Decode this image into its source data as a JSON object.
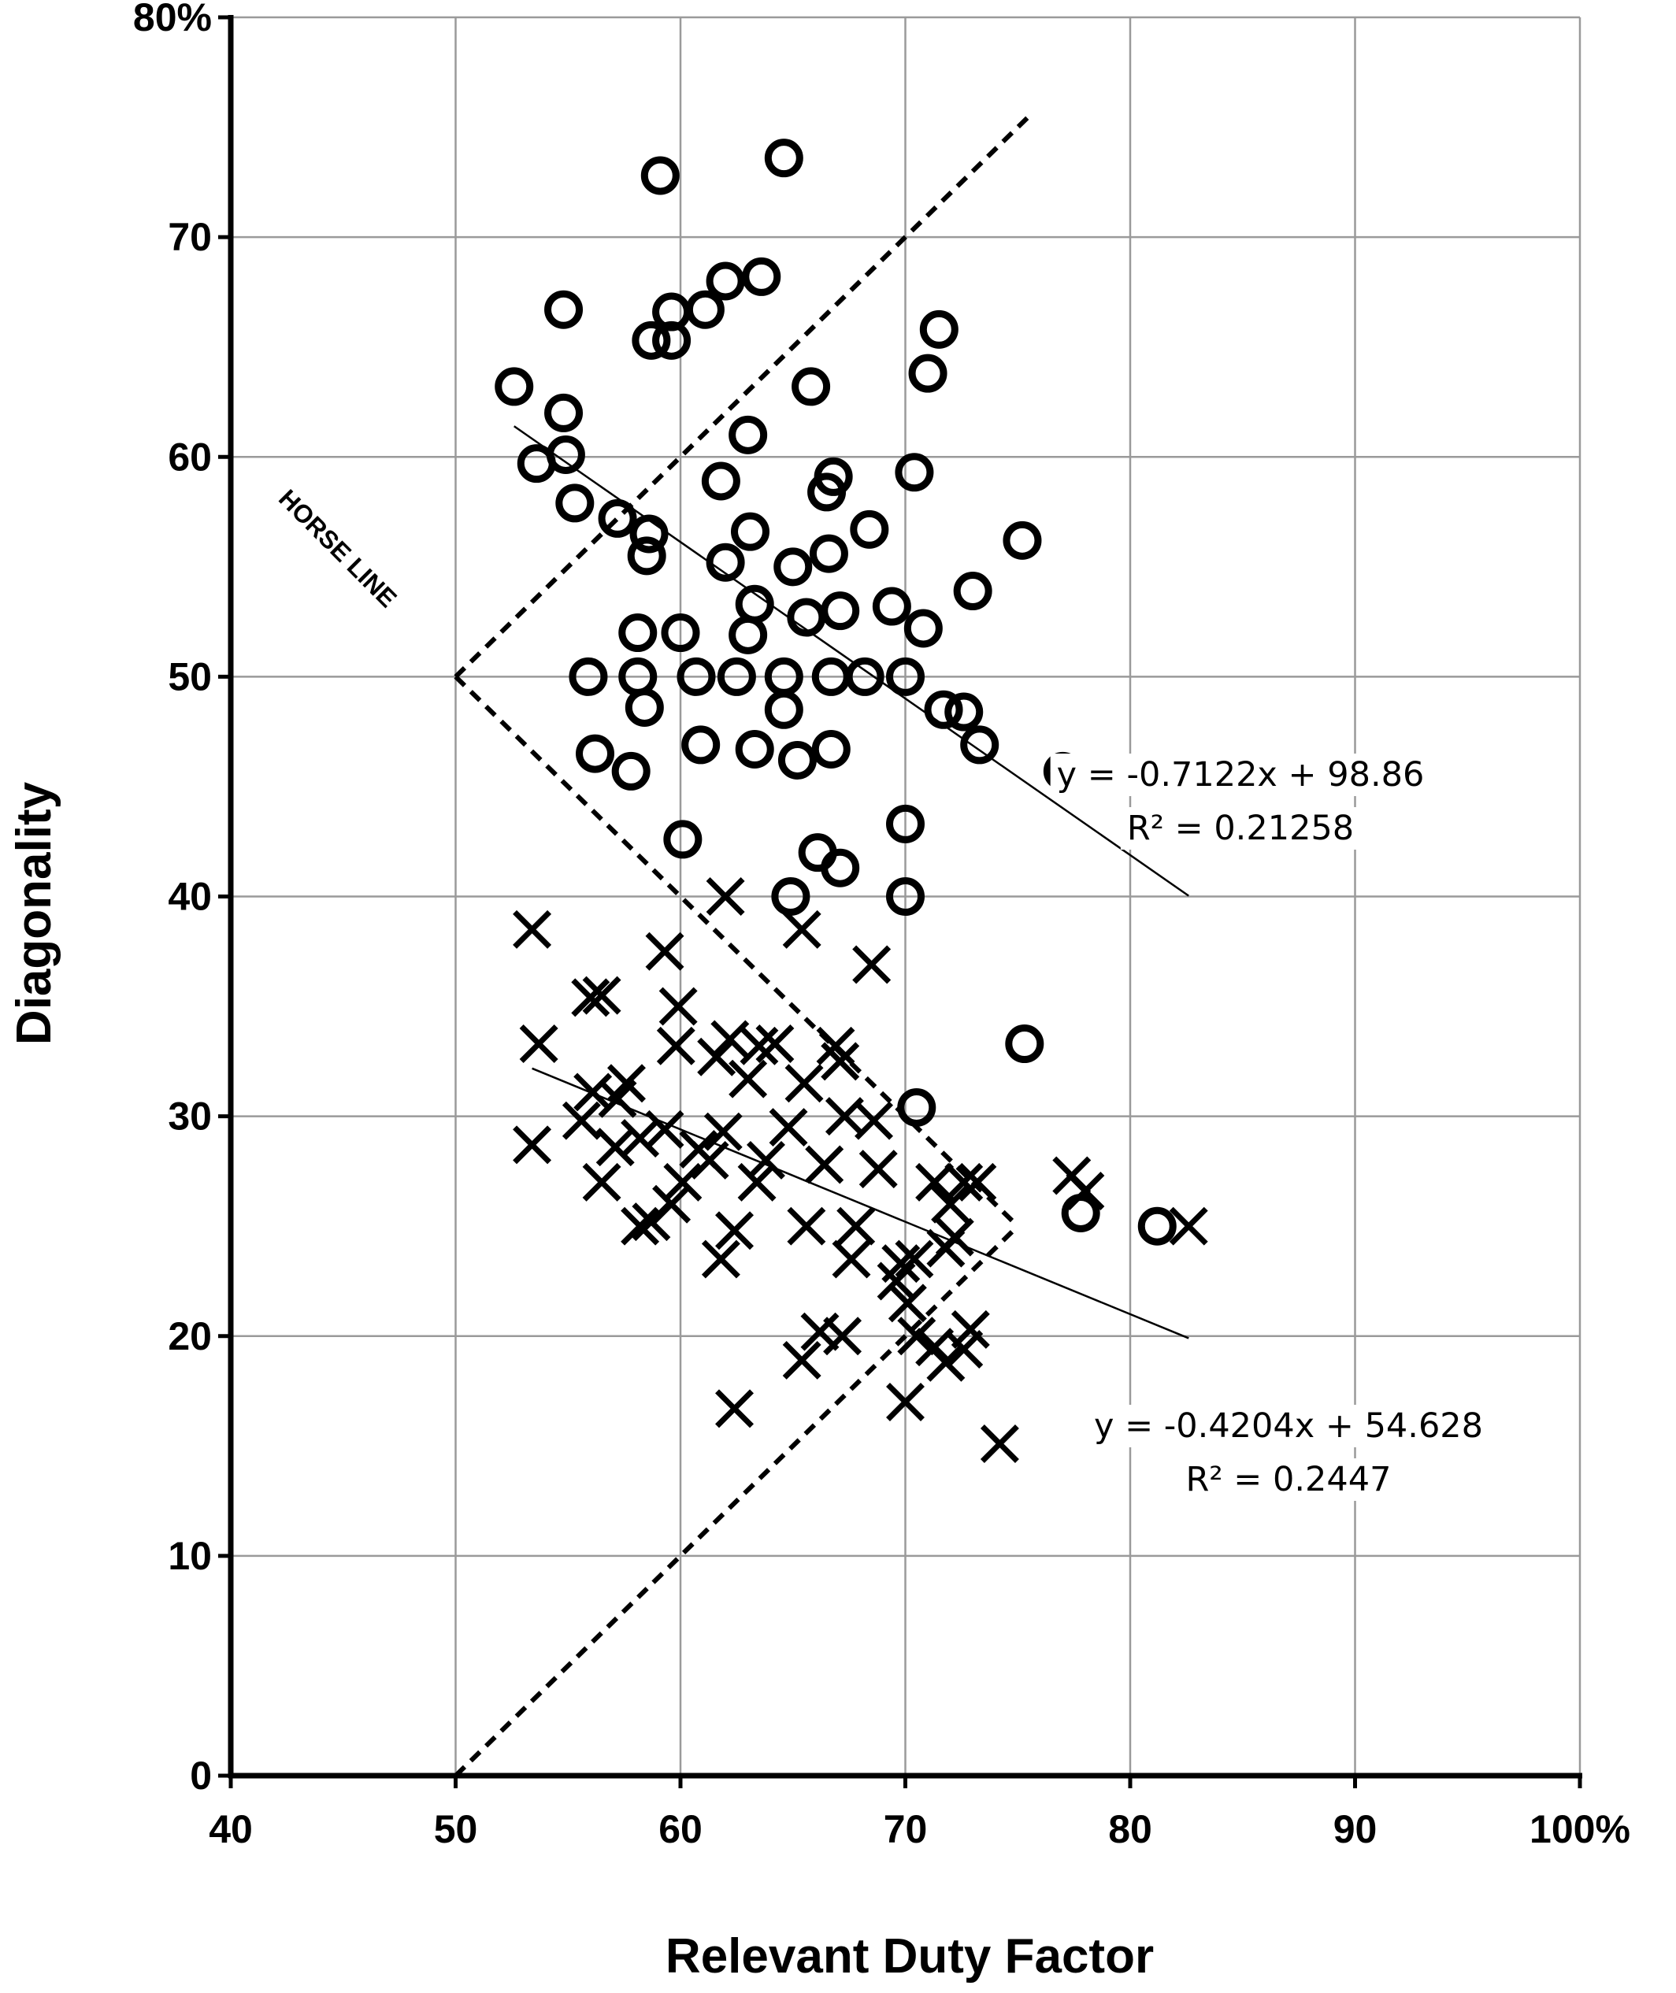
{
  "chart_data": {
    "type": "scatter",
    "xlabel": "Relevant Duty Factor",
    "ylabel": "Diagonality",
    "xlim": [
      40,
      100
    ],
    "ylim": [
      0,
      80
    ],
    "x_ticks": [
      "40",
      "50",
      "60",
      "70",
      "80",
      "90",
      "100%"
    ],
    "y_ticks": [
      "0",
      "10",
      "20",
      "30",
      "40",
      "50",
      "60",
      "70",
      "80%"
    ],
    "x_tick_values": [
      40,
      50,
      60,
      70,
      80,
      90,
      100
    ],
    "y_tick_values": [
      0,
      10,
      20,
      30,
      40,
      50,
      60,
      70,
      80
    ],
    "grid": true,
    "series": [
      {
        "marker": "circle",
        "points": [
          [
            59.1,
            72.8
          ],
          [
            64.6,
            73.6
          ],
          [
            52.6,
            63.2
          ],
          [
            54.8,
            66.7
          ],
          [
            58.7,
            65.3
          ],
          [
            59.6,
            66.6
          ],
          [
            59.6,
            65.3
          ],
          [
            61.1,
            66.7
          ],
          [
            62.0,
            68.0
          ],
          [
            63.6,
            68.2
          ],
          [
            65.8,
            63.2
          ],
          [
            71.0,
            63.8
          ],
          [
            71.5,
            65.8
          ],
          [
            54.8,
            62.0
          ],
          [
            53.6,
            59.7
          ],
          [
            54.9,
            60.1
          ],
          [
            55.3,
            57.9
          ],
          [
            57.2,
            57.2
          ],
          [
            58.5,
            55.5
          ],
          [
            58.6,
            56.5
          ],
          [
            61.8,
            58.9
          ],
          [
            62.0,
            55.2
          ],
          [
            63.0,
            61.0
          ],
          [
            63.1,
            56.6
          ],
          [
            65.0,
            55.0
          ],
          [
            66.5,
            58.4
          ],
          [
            66.8,
            59.1
          ],
          [
            66.6,
            55.6
          ],
          [
            68.4,
            56.7
          ],
          [
            70.4,
            59.3
          ],
          [
            75.2,
            56.2
          ],
          [
            58.1,
            52.0
          ],
          [
            55.9,
            50.0
          ],
          [
            58.1,
            50.0
          ],
          [
            58.4,
            48.6
          ],
          [
            60.0,
            52.0
          ],
          [
            60.7,
            50.0
          ],
          [
            62.5,
            50.0
          ],
          [
            63.0,
            51.9
          ],
          [
            63.3,
            53.3
          ],
          [
            64.6,
            50.0
          ],
          [
            64.6,
            48.5
          ],
          [
            65.6,
            52.7
          ],
          [
            66.7,
            50.0
          ],
          [
            67.1,
            53.0
          ],
          [
            68.2,
            50.0
          ],
          [
            69.4,
            53.2
          ],
          [
            70.0,
            50.0
          ],
          [
            70.8,
            52.2
          ],
          [
            73.0,
            53.9
          ],
          [
            56.2,
            46.5
          ],
          [
            57.8,
            45.7
          ],
          [
            60.9,
            46.9
          ],
          [
            63.3,
            46.7
          ],
          [
            65.2,
            46.2
          ],
          [
            66.7,
            46.7
          ],
          [
            71.7,
            48.5
          ],
          [
            72.6,
            48.4
          ],
          [
            73.3,
            46.9
          ],
          [
            77.0,
            45.7
          ],
          [
            60.1,
            42.6
          ],
          [
            64.9,
            40.0
          ],
          [
            66.1,
            42.0
          ],
          [
            67.1,
            41.3
          ],
          [
            70.0,
            43.3
          ],
          [
            70.0,
            40.0
          ],
          [
            75.3,
            33.3
          ],
          [
            70.5,
            30.4
          ],
          [
            77.8,
            25.6
          ],
          [
            81.2,
            25.0
          ]
        ],
        "trendline": {
          "equation": "y = -0.7122x + 98.86",
          "r2": "R² = 0.21258",
          "slope": -0.7122,
          "intercept": 98.86,
          "x_range": [
            52.6,
            82.6
          ]
        }
      },
      {
        "marker": "cross",
        "points": [
          [
            53.4,
            38.5
          ],
          [
            53.7,
            33.3
          ],
          [
            53.4,
            28.7
          ],
          [
            56.0,
            35.4
          ],
          [
            56.5,
            35.5
          ],
          [
            55.6,
            29.8
          ],
          [
            56.1,
            31.1
          ],
          [
            56.5,
            27.0
          ],
          [
            57.2,
            30.8
          ],
          [
            57.1,
            28.6
          ],
          [
            57.6,
            31.5
          ],
          [
            58.2,
            29.0
          ],
          [
            58.7,
            25.2
          ],
          [
            58.2,
            25.0
          ],
          [
            59.3,
            37.5
          ],
          [
            59.9,
            35.0
          ],
          [
            59.8,
            33.2
          ],
          [
            59.3,
            29.4
          ],
          [
            59.6,
            26.0
          ],
          [
            60.1,
            27.0
          ],
          [
            60.8,
            28.5
          ],
          [
            61.3,
            28.0
          ],
          [
            61.6,
            32.7
          ],
          [
            62.0,
            40.0
          ],
          [
            62.2,
            33.5
          ],
          [
            61.9,
            29.3
          ],
          [
            61.8,
            23.5
          ],
          [
            62.4,
            24.8
          ],
          [
            63.0,
            31.7
          ],
          [
            63.5,
            33.2
          ],
          [
            63.4,
            27.0
          ],
          [
            63.8,
            28.0
          ],
          [
            64.2,
            33.3
          ],
          [
            64.8,
            29.5
          ],
          [
            65.4,
            38.5
          ],
          [
            65.5,
            31.5
          ],
          [
            65.6,
            25.0
          ],
          [
            66.4,
            27.8
          ],
          [
            66.9,
            33.2
          ],
          [
            67.1,
            32.5
          ],
          [
            67.3,
            30.0
          ],
          [
            67.8,
            25.0
          ],
          [
            67.6,
            23.5
          ],
          [
            68.5,
            36.9
          ],
          [
            68.6,
            29.8
          ],
          [
            68.8,
            27.6
          ],
          [
            69.6,
            22.5
          ],
          [
            69.8,
            23.3
          ],
          [
            70.1,
            21.5
          ],
          [
            70.4,
            23.5
          ],
          [
            70.5,
            20.0
          ],
          [
            71.3,
            27.0
          ],
          [
            72.0,
            26.0
          ],
          [
            72.2,
            24.5
          ],
          [
            72.6,
            27.0
          ],
          [
            73.2,
            27.0
          ],
          [
            71.8,
            24.0
          ],
          [
            71.3,
            19.5
          ],
          [
            62.4,
            16.7
          ],
          [
            65.4,
            18.9
          ],
          [
            66.2,
            20.2
          ],
          [
            67.2,
            20.0
          ],
          [
            70.0,
            17.0
          ],
          [
            71.8,
            18.8
          ],
          [
            72.9,
            20.3
          ],
          [
            72.6,
            19.4
          ],
          [
            74.2,
            15.1
          ],
          [
            77.4,
            27.3
          ],
          [
            78.0,
            26.6
          ],
          [
            82.6,
            25.0
          ]
        ],
        "trendline": {
          "equation": "y = -0.4204x + 54.628",
          "r2": "R² = 0.2447",
          "slope": -0.4204,
          "intercept": 54.628,
          "x_range": [
            53.4,
            82.6
          ]
        }
      }
    ],
    "reference_lines": {
      "label": "HORSE LINE",
      "upper_dashed": [
        [
          50,
          50
        ],
        [
          75.6,
          75.6
        ]
      ],
      "diagonal_dashed": [
        [
          50,
          50
        ],
        [
          75,
          25
        ]
      ],
      "lower_dashed": [
        [
          50,
          0
        ],
        [
          75,
          25
        ]
      ]
    }
  }
}
